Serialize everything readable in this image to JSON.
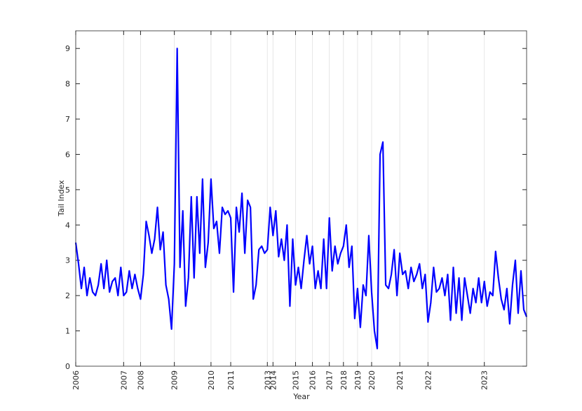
{
  "chart_data": {
    "type": "line",
    "xlabel": "Year",
    "ylabel": "Tail Index",
    "xlim": [
      1,
      161
    ],
    "ylim": [
      0,
      9.5
    ],
    "xticks": [
      {
        "value": 1,
        "label": "2006"
      },
      {
        "value": 18,
        "label": "2007"
      },
      {
        "value": 24,
        "label": "2008"
      },
      {
        "value": 36,
        "label": "2009"
      },
      {
        "value": 49,
        "label": "2010"
      },
      {
        "value": 56,
        "label": "2011"
      },
      {
        "value": 69,
        "label": "2013"
      },
      {
        "value": 71,
        "label": "2014"
      },
      {
        "value": 79,
        "label": "2015"
      },
      {
        "value": 85,
        "label": "2016"
      },
      {
        "value": 91,
        "label": "2017"
      },
      {
        "value": 96,
        "label": "2018"
      },
      {
        "value": 101,
        "label": "2019"
      },
      {
        "value": 106,
        "label": "2020"
      },
      {
        "value": 116,
        "label": "2021"
      },
      {
        "value": 126,
        "label": "2022"
      },
      {
        "value": 146,
        "label": "2023"
      }
    ],
    "yticks": [
      0,
      1,
      2,
      3,
      4,
      5,
      6,
      7,
      8,
      9
    ],
    "grid": "x",
    "x": [
      1,
      2,
      3,
      4,
      5,
      6,
      7,
      8,
      9,
      10,
      11,
      12,
      13,
      14,
      15,
      16,
      17,
      18,
      19,
      20,
      21,
      22,
      23,
      24,
      25,
      26,
      27,
      28,
      29,
      30,
      31,
      32,
      33,
      34,
      35,
      36,
      37,
      38,
      39,
      40,
      41,
      42,
      43,
      44,
      45,
      46,
      47,
      48,
      49,
      50,
      51,
      52,
      53,
      54,
      55,
      56,
      57,
      58,
      59,
      60,
      61,
      62,
      63,
      64,
      65,
      66,
      67,
      68,
      69,
      70,
      71,
      72,
      73,
      74,
      75,
      76,
      77,
      78,
      79,
      80,
      81,
      82,
      83,
      84,
      85,
      86,
      87,
      88,
      89,
      90,
      91,
      92,
      93,
      94,
      95,
      96,
      97,
      98,
      99,
      100,
      101,
      102,
      103,
      104,
      105,
      106,
      107,
      108,
      109,
      110,
      111,
      112,
      113,
      114,
      115,
      116,
      117,
      118,
      119,
      120,
      121,
      122,
      123,
      124,
      125,
      126,
      127,
      128,
      129,
      130,
      131,
      132,
      133,
      134,
      135,
      136,
      137,
      138,
      139,
      140,
      141,
      142,
      143,
      144,
      145,
      146,
      147,
      148,
      149,
      150,
      151,
      152,
      153,
      154,
      155,
      156,
      157,
      158,
      159,
      160,
      161
    ],
    "series": [
      {
        "color": "#0000ff",
        "values": [
          3.5,
          2.9,
          2.2,
          2.8,
          2.0,
          2.5,
          2.1,
          2.0,
          2.3,
          2.9,
          2.2,
          3.0,
          2.1,
          2.4,
          2.5,
          2.0,
          2.8,
          2.0,
          2.1,
          2.7,
          2.2,
          2.6,
          2.2,
          1.9,
          2.6,
          4.1,
          3.7,
          3.2,
          3.6,
          4.5,
          3.3,
          3.8,
          2.3,
          1.9,
          1.05,
          2.9,
          9.0,
          2.8,
          4.4,
          1.7,
          2.5,
          4.8,
          2.5,
          4.8,
          3.2,
          5.3,
          2.8,
          3.5,
          5.3,
          3.9,
          4.1,
          3.2,
          4.5,
          4.3,
          4.4,
          4.2,
          2.1,
          4.5,
          3.8,
          4.9,
          3.2,
          4.7,
          4.5,
          1.9,
          2.3,
          3.3,
          3.4,
          3.2,
          3.3,
          4.5,
          3.7,
          4.4,
          3.1,
          3.6,
          3.0,
          4.0,
          1.7,
          3.6,
          2.3,
          2.8,
          2.2,
          3.0,
          3.7,
          2.9,
          3.4,
          2.2,
          2.7,
          2.2,
          3.6,
          2.2,
          4.2,
          2.7,
          3.4,
          2.9,
          3.2,
          3.4,
          4.0,
          2.8,
          3.4,
          1.35,
          2.2,
          1.1,
          2.3,
          2.0,
          3.7,
          2.1,
          1.0,
          0.5,
          6.0,
          6.35,
          2.3,
          2.2,
          2.6,
          3.3,
          2.0,
          3.2,
          2.6,
          2.7,
          2.2,
          2.8,
          2.4,
          2.6,
          2.9,
          2.2,
          2.6,
          1.25,
          1.8,
          2.8,
          2.1,
          2.2,
          2.5,
          2.0,
          2.6,
          1.3,
          2.8,
          1.5,
          2.5,
          1.3,
          2.5,
          2.0,
          1.5,
          2.2,
          1.8,
          2.5,
          1.8,
          2.4,
          1.7,
          2.1,
          2.0,
          3.25,
          2.5,
          1.9,
          1.6,
          2.2,
          1.2,
          2.3,
          3.0,
          1.5,
          2.7,
          1.6,
          1.4
        ]
      }
    ]
  }
}
